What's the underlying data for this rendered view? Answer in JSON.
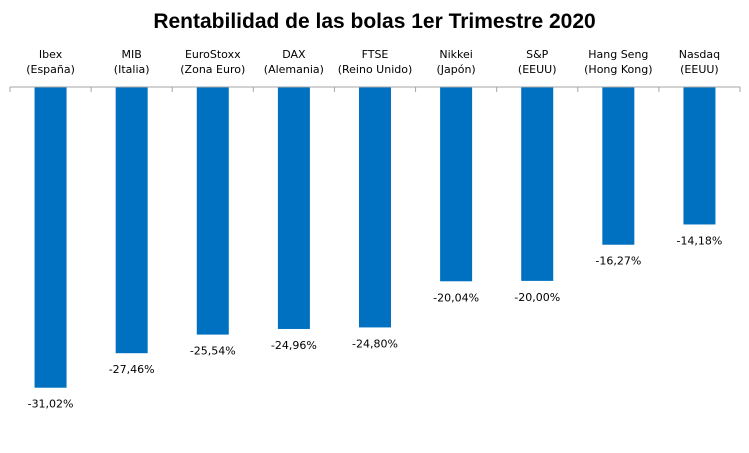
{
  "chart_data": {
    "type": "bar",
    "title": "Rentabilidad de las bolas 1er Trimestre 2020",
    "categories": [
      [
        "Ibex",
        "(España)"
      ],
      [
        "MIB",
        "(Italia)"
      ],
      [
        "EuroStoxx",
        "(Zona Euro)"
      ],
      [
        "DAX",
        "(Alemania)"
      ],
      [
        "FTSE",
        "(Reino Unido)"
      ],
      [
        "Nikkei",
        "(Japón)"
      ],
      [
        "S&P",
        "(EEUU)"
      ],
      [
        "Hang Seng",
        "(Hong Kong)"
      ],
      [
        "Nasdaq",
        "(EEUU)"
      ]
    ],
    "values": [
      -31.02,
      -27.46,
      -25.54,
      -24.96,
      -24.8,
      -20.04,
      -20.0,
      -16.27,
      -14.18
    ],
    "data_labels": [
      "-31,02%",
      "-27,46%",
      "-25,54%",
      "-24,96%",
      "-24,80%",
      "-20,04%",
      "-20,00%",
      "-16,27%",
      "-14,18%"
    ],
    "xlabel": "",
    "ylabel": "",
    "ylim": [
      -36,
      0
    ],
    "grid": false,
    "legend": "none",
    "bar_color": "#0070C0",
    "axis_color": "#a6a6a6"
  }
}
